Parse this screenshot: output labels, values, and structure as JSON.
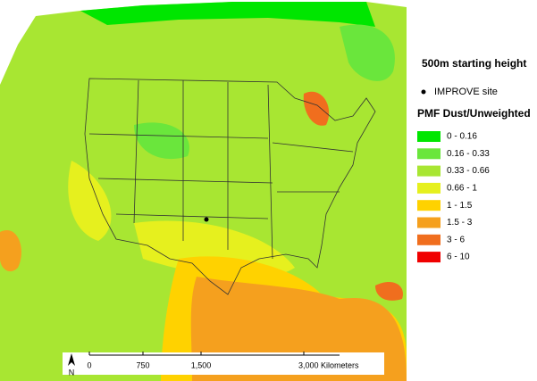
{
  "title": "500m starting height",
  "site_legend": "IMPROVE site",
  "legend": {
    "title": "PMF Dust/Unweighted",
    "classes": [
      {
        "label": "0 - 0.16",
        "color": "#00e600"
      },
      {
        "label": "0.16 - 0.33",
        "color": "#6ae63c"
      },
      {
        "label": "0.33 - 0.66",
        "color": "#a8e632"
      },
      {
        "label": "0.66 - 1",
        "color": "#e6f01e"
      },
      {
        "label": "1 - 1.5",
        "color": "#ffd200"
      },
      {
        "label": "1.5 - 3",
        "color": "#f5a01e"
      },
      {
        "label": "3 - 6",
        "color": "#f06e1e"
      },
      {
        "label": "6 - 10",
        "color": "#f00000"
      }
    ]
  },
  "scale_bar": {
    "labels": [
      "0",
      "750",
      "1,500",
      "3,000 Kilometers"
    ]
  },
  "north_arrow": "N"
}
